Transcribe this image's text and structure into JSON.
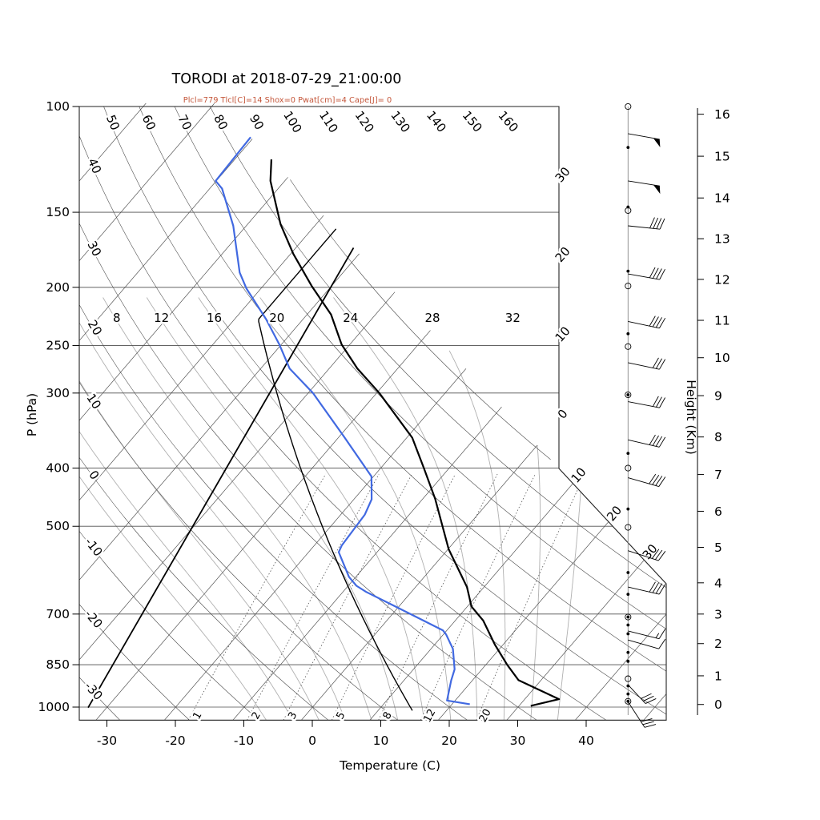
{
  "title": "TORODI at 2018-07-29_21:00:00",
  "subtitle": "Plcl=779 Tlcl[C]=14 Shox=0 Pwat[cm]=4 Cape[J]= 0",
  "subtitle_color": "#c4563a",
  "axes": {
    "pressure": {
      "label": "P (hPa)",
      "ticks": [
        100,
        150,
        200,
        250,
        300,
        400,
        500,
        700,
        850,
        1000
      ],
      "range": [
        100,
        1050
      ]
    },
    "temperature": {
      "label": "Temperature (C)",
      "ticks": [
        -30,
        -20,
        -10,
        0,
        10,
        20,
        30,
        40
      ]
    },
    "height": {
      "label": "Height (Km)",
      "ticks": [
        {
          "km": 0,
          "p": 990
        },
        {
          "km": 1,
          "p": 887
        },
        {
          "km": 2,
          "p": 784
        },
        {
          "km": 3,
          "p": 700
        },
        {
          "km": 4,
          "p": 621
        },
        {
          "km": 5,
          "p": 542
        },
        {
          "km": 6,
          "p": 472
        },
        {
          "km": 7,
          "p": 410
        },
        {
          "km": 8,
          "p": 355
        },
        {
          "km": 9,
          "p": 303
        },
        {
          "km": 10,
          "p": 262
        },
        {
          "km": 11,
          "p": 227
        },
        {
          "km": 12,
          "p": 194
        },
        {
          "km": 13,
          "p": 166
        },
        {
          "km": 14,
          "p": 142
        },
        {
          "km": 15,
          "p": 121
        },
        {
          "km": 16,
          "p": 103
        }
      ]
    }
  },
  "grid": {
    "isotherms": {
      "min": -110,
      "max": 50,
      "step": 10,
      "labeled": [
        -30,
        -20,
        -10,
        0,
        10,
        20,
        30
      ]
    },
    "dry_adiabats": {
      "min": -30,
      "max": 180,
      "step": 10,
      "label_min": -30,
      "label_max": 160
    },
    "moist_adiabats": {
      "values": [
        -8,
        -4,
        0,
        4,
        8,
        12,
        16,
        20,
        24,
        28,
        32,
        36
      ],
      "labeled": [
        8,
        12,
        16,
        20,
        24,
        28,
        32
      ],
      "label_pressure": 225,
      "top_pressure": 210
    },
    "mixing_ratio_g_kg": {
      "values": [
        1,
        2,
        3,
        5,
        8,
        12,
        20
      ],
      "top_pressure": 400
    }
  },
  "chart_data": {
    "type": "line",
    "station": "TORODI",
    "time": "2018-07-29_21:00:00",
    "params": {
      "Plcl": 779,
      "Tlcl_C": 14,
      "Shox": 0,
      "Pwat_cm": 4,
      "Cape_J": 0
    },
    "series": [
      {
        "name": "temperature",
        "color": "#000000",
        "points_p_T": [
          [
            995,
            31.7
          ],
          [
            970,
            35.0
          ],
          [
            902,
            26.7
          ],
          [
            850,
            23.1
          ],
          [
            787,
            18.8
          ],
          [
            718,
            14.1
          ],
          [
            680,
            10.6
          ],
          [
            631,
            7.5
          ],
          [
            546,
            0.1
          ],
          [
            450,
            -8.2
          ],
          [
            400,
            -13.7
          ],
          [
            356,
            -19.2
          ],
          [
            300,
            -29.6
          ],
          [
            273,
            -35.9
          ],
          [
            249,
            -41.2
          ],
          [
            222,
            -46.5
          ],
          [
            199,
            -52.9
          ],
          [
            176,
            -59.6
          ],
          [
            157,
            -65.2
          ],
          [
            133,
            -72.1
          ],
          [
            111,
            -77.7
          ]
        ]
      },
      {
        "name": "dewpoint",
        "color": "#4169e1",
        "points_p_T": [
          [
            989,
            22.6
          ],
          [
            975,
            18.8
          ],
          [
            903,
            16.9
          ],
          [
            865,
            16.0
          ],
          [
            800,
            13.2
          ],
          [
            757,
            10.4
          ],
          [
            745,
            9.4
          ],
          [
            680,
            -0.5
          ],
          [
            643,
            -6.6
          ],
          [
            628,
            -8.8
          ],
          [
            607,
            -11.0
          ],
          [
            552,
            -15.6
          ],
          [
            538,
            -16.0
          ],
          [
            478,
            -16.5
          ],
          [
            451,
            -17.4
          ],
          [
            413,
            -20.3
          ],
          [
            354,
            -29.4
          ],
          [
            300,
            -39.3
          ],
          [
            273,
            -45.8
          ],
          [
            249,
            -50.3
          ],
          [
            226,
            -55.4
          ],
          [
            201,
            -62.1
          ],
          [
            189,
            -65.1
          ],
          [
            158,
            -71.9
          ],
          [
            137,
            -78.2
          ],
          [
            133,
            -80.1
          ],
          [
            111,
            -80.5
          ]
        ]
      },
      {
        "name": "standard-atmosphere",
        "color": "#000000",
        "model": {
          "T0_C": 15,
          "lapse_C_per_km": 6.5,
          "p0_hPa": 1013.25,
          "tropopause_km": 11,
          "T_tropo_C": -56.5,
          "p_range": [
            104,
            1013.25
          ]
        }
      },
      {
        "name": "height-reference-line",
        "color": "#000000",
        "points_p_km": [
          [
            1002,
            0
          ],
          [
            104.7,
            16.55
          ]
        ]
      }
    ],
    "wind_barbs": [
      {
        "p": 100,
        "m": "circle"
      },
      {
        "p": 111,
        "a": 10,
        "pen": 1,
        "b": 0
      },
      {
        "p": 117,
        "m": "dot"
      },
      {
        "p": 133,
        "a": 9,
        "pen": 1,
        "b": 0
      },
      {
        "p": 147,
        "m": "dot"
      },
      {
        "p": 149,
        "m": "circle"
      },
      {
        "p": 158,
        "a": 6,
        "b": 4
      },
      {
        "p": 188,
        "m": "dot"
      },
      {
        "p": 190,
        "a": 10,
        "b": 4
      },
      {
        "p": 199,
        "m": "circle"
      },
      {
        "p": 228,
        "a": 12,
        "b": 4
      },
      {
        "p": 239,
        "m": "dot"
      },
      {
        "p": 251,
        "m": "circle"
      },
      {
        "p": 267,
        "a": 12,
        "b": 3
      },
      {
        "p": 302,
        "m": "circle-dot"
      },
      {
        "p": 310,
        "a": 11,
        "b": 3
      },
      {
        "p": 359,
        "a": 13,
        "b": 4
      },
      {
        "p": 378,
        "m": "dot"
      },
      {
        "p": 400,
        "m": "circle"
      },
      {
        "p": 415,
        "a": 16,
        "b": 4
      },
      {
        "p": 468,
        "m": "dot"
      },
      {
        "p": 502,
        "m": "circle"
      },
      {
        "p": 549,
        "a": 18,
        "b": 3
      },
      {
        "p": 597,
        "m": "dot"
      },
      {
        "p": 631,
        "a": 13,
        "b": 4
      },
      {
        "p": 649,
        "m": "dot"
      },
      {
        "p": 708,
        "m": "circle-dot"
      },
      {
        "p": 730,
        "m": "dot"
      },
      {
        "p": 747,
        "a": 14,
        "b": 1,
        "h": 1
      },
      {
        "p": 755,
        "m": "dot"
      },
      {
        "p": 773,
        "a": 16,
        "b": 1
      },
      {
        "p": 811,
        "m": "dot"
      },
      {
        "p": 839,
        "m": "dot"
      },
      {
        "p": 897,
        "m": "circle"
      },
      {
        "p": 918,
        "a": 47,
        "b": 3,
        "len": 32
      },
      {
        "p": 922,
        "m": "dot"
      },
      {
        "p": 951,
        "m": "dot"
      },
      {
        "p": 978,
        "m": "circle-dot"
      },
      {
        "p": 980,
        "a": 57,
        "b": 3,
        "len": 38
      }
    ]
  }
}
